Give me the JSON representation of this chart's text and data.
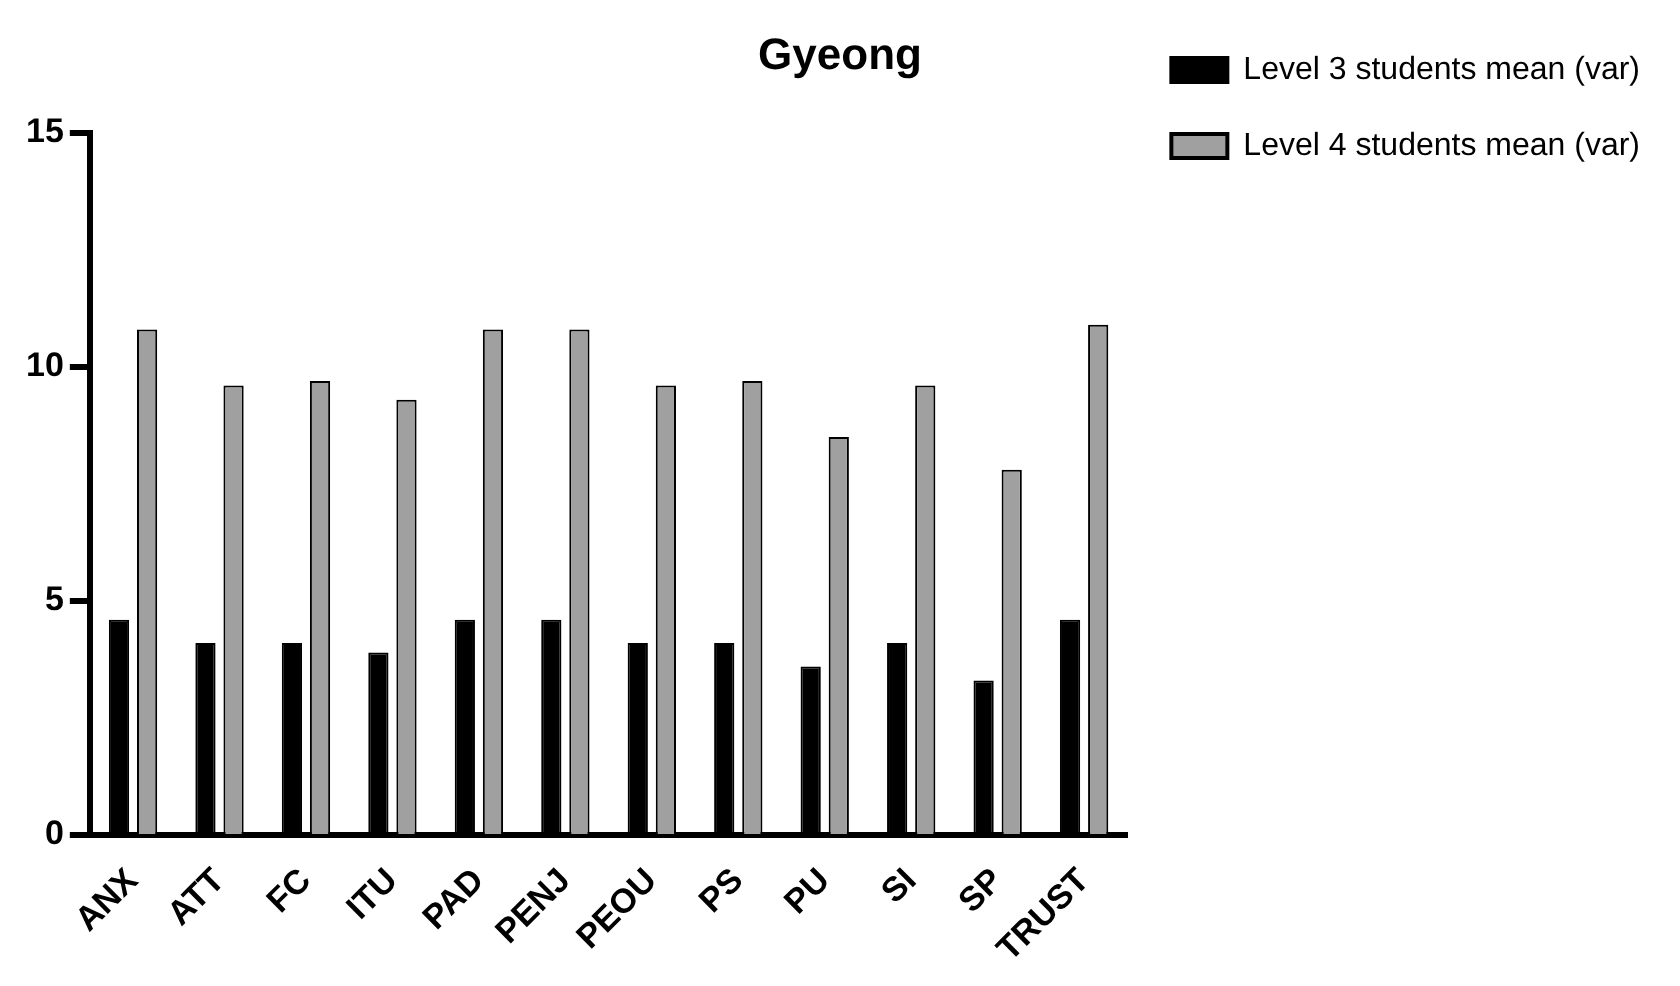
{
  "chart_data": {
    "type": "bar",
    "title": "Gyeong",
    "categories": [
      "ANX",
      "ATT",
      "FC",
      "ITU",
      "PAD",
      "PENJ",
      "PEOU",
      "PS",
      "PU",
      "SI",
      "SP",
      "TRUST"
    ],
    "series": [
      {
        "name": "Level 3 students mean (var)",
        "color": "#000000",
        "values": [
          4.6,
          4.1,
          4.1,
          3.9,
          4.6,
          4.6,
          4.1,
          4.1,
          3.6,
          4.1,
          3.3,
          4.6
        ]
      },
      {
        "name": "Level 4 students mean (var)",
        "color": "#a0a0a0",
        "values": [
          10.8,
          9.6,
          9.7,
          9.3,
          10.8,
          10.8,
          9.6,
          9.7,
          8.5,
          9.6,
          7.8,
          10.9
        ]
      }
    ],
    "ylim": [
      0,
      15
    ],
    "yticks": [
      0,
      5,
      10,
      15
    ],
    "grid": false,
    "legend": "right"
  }
}
